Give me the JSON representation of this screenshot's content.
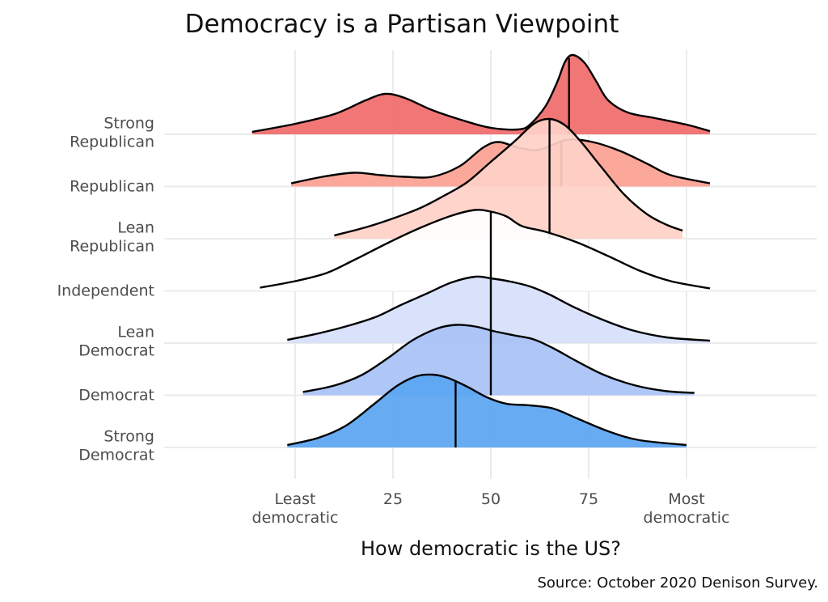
{
  "chart_data": {
    "type": "ridgeline",
    "title": "Democracy is a Partisan Viewpoint",
    "xlabel": "How democratic is the US?",
    "ylabel": "",
    "caption": "Source: October 2020 Denison Survey.",
    "xlim": [
      -12,
      112
    ],
    "x_ticks": [
      {
        "value": 0,
        "label": [
          "Least",
          "democratic"
        ]
      },
      {
        "value": 25,
        "label": [
          "25"
        ]
      },
      {
        "value": 50,
        "label": [
          "50"
        ]
      },
      {
        "value": 75,
        "label": [
          "75"
        ]
      },
      {
        "value": 100,
        "label": [
          "Most",
          "democratic"
        ]
      }
    ],
    "grid": true,
    "legend": "none",
    "series": [
      {
        "name": "Strong Republican",
        "label_lines": [
          "Strong",
          "Republican"
        ],
        "color": "#f06a6a",
        "median": 70,
        "density": [
          [
            -11,
            0.03
          ],
          [
            0,
            0.13
          ],
          [
            10,
            0.25
          ],
          [
            18,
            0.42
          ],
          [
            23,
            0.5
          ],
          [
            28,
            0.45
          ],
          [
            35,
            0.3
          ],
          [
            43,
            0.17
          ],
          [
            50,
            0.08
          ],
          [
            57,
            0.06
          ],
          [
            60,
            0.12
          ],
          [
            64,
            0.35
          ],
          [
            67,
            0.65
          ],
          [
            69,
            0.9
          ],
          [
            71,
            0.98
          ],
          [
            74,
            0.88
          ],
          [
            77,
            0.65
          ],
          [
            80,
            0.42
          ],
          [
            85,
            0.27
          ],
          [
            92,
            0.2
          ],
          [
            100,
            0.12
          ],
          [
            106,
            0.04
          ]
        ]
      },
      {
        "name": "Republican",
        "label_lines": [
          "Republican"
        ],
        "color": "#fba193",
        "median": 68,
        "density": [
          [
            -1,
            0.04
          ],
          [
            7,
            0.12
          ],
          [
            15,
            0.17
          ],
          [
            22,
            0.14
          ],
          [
            28,
            0.12
          ],
          [
            35,
            0.12
          ],
          [
            42,
            0.25
          ],
          [
            48,
            0.48
          ],
          [
            52,
            0.55
          ],
          [
            57,
            0.48
          ],
          [
            62,
            0.45
          ],
          [
            66,
            0.52
          ],
          [
            70,
            0.58
          ],
          [
            76,
            0.55
          ],
          [
            83,
            0.44
          ],
          [
            90,
            0.28
          ],
          [
            96,
            0.14
          ],
          [
            106,
            0.04
          ]
        ]
      },
      {
        "name": "Lean Republican",
        "label_lines": [
          "Lean",
          "Republican"
        ],
        "color": "#fed0c7",
        "median": 65,
        "density": [
          [
            10,
            0.04
          ],
          [
            18,
            0.14
          ],
          [
            25,
            0.25
          ],
          [
            32,
            0.38
          ],
          [
            38,
            0.53
          ],
          [
            44,
            0.7
          ],
          [
            50,
            0.95
          ],
          [
            56,
            1.2
          ],
          [
            61,
            1.42
          ],
          [
            65,
            1.48
          ],
          [
            69,
            1.4
          ],
          [
            73,
            1.2
          ],
          [
            78,
            0.9
          ],
          [
            84,
            0.55
          ],
          [
            90,
            0.3
          ],
          [
            95,
            0.17
          ],
          [
            99,
            0.1
          ]
        ]
      },
      {
        "name": "Independent",
        "label_lines": [
          "Independent"
        ],
        "color": "#ffffff",
        "median": 50,
        "density": [
          [
            -9,
            0.04
          ],
          [
            0,
            0.12
          ],
          [
            8,
            0.22
          ],
          [
            15,
            0.38
          ],
          [
            24,
            0.6
          ],
          [
            32,
            0.78
          ],
          [
            40,
            0.93
          ],
          [
            46,
            1.0
          ],
          [
            50,
            0.98
          ],
          [
            54,
            0.92
          ],
          [
            58,
            0.8
          ],
          [
            64,
            0.73
          ],
          [
            72,
            0.6
          ],
          [
            80,
            0.43
          ],
          [
            88,
            0.25
          ],
          [
            96,
            0.12
          ],
          [
            106,
            0.03
          ]
        ]
      },
      {
        "name": "Lean Democrat",
        "label_lines": [
          "Lean",
          "Democrat"
        ],
        "color": "#d6e0fa",
        "median": 50,
        "density": [
          [
            -2,
            0.04
          ],
          [
            6,
            0.12
          ],
          [
            14,
            0.22
          ],
          [
            21,
            0.33
          ],
          [
            27,
            0.47
          ],
          [
            34,
            0.62
          ],
          [
            40,
            0.75
          ],
          [
            46,
            0.82
          ],
          [
            50,
            0.8
          ],
          [
            55,
            0.76
          ],
          [
            60,
            0.7
          ],
          [
            65,
            0.6
          ],
          [
            71,
            0.45
          ],
          [
            78,
            0.3
          ],
          [
            86,
            0.16
          ],
          [
            95,
            0.07
          ],
          [
            106,
            0.03
          ]
        ]
      },
      {
        "name": "Democrat",
        "label_lines": [
          "Democrat"
        ],
        "color": "#a8c2f5",
        "median": 50,
        "density": [
          [
            2,
            0.04
          ],
          [
            10,
            0.12
          ],
          [
            17,
            0.25
          ],
          [
            24,
            0.47
          ],
          [
            30,
            0.68
          ],
          [
            36,
            0.82
          ],
          [
            41,
            0.87
          ],
          [
            46,
            0.85
          ],
          [
            51,
            0.79
          ],
          [
            56,
            0.74
          ],
          [
            61,
            0.69
          ],
          [
            66,
            0.58
          ],
          [
            72,
            0.42
          ],
          [
            79,
            0.25
          ],
          [
            87,
            0.12
          ],
          [
            95,
            0.05
          ],
          [
            102,
            0.03
          ]
        ]
      },
      {
        "name": "Strong Democrat",
        "label_lines": [
          "Strong",
          "Democrat"
        ],
        "color": "#5aa5f2",
        "median": 41,
        "density": [
          [
            -2,
            0.03
          ],
          [
            6,
            0.12
          ],
          [
            13,
            0.27
          ],
          [
            20,
            0.53
          ],
          [
            26,
            0.76
          ],
          [
            31,
            0.88
          ],
          [
            35,
            0.9
          ],
          [
            39,
            0.86
          ],
          [
            44,
            0.75
          ],
          [
            49,
            0.62
          ],
          [
            54,
            0.54
          ],
          [
            60,
            0.52
          ],
          [
            66,
            0.48
          ],
          [
            72,
            0.36
          ],
          [
            80,
            0.2
          ],
          [
            88,
            0.09
          ],
          [
            100,
            0.03
          ]
        ]
      }
    ]
  }
}
